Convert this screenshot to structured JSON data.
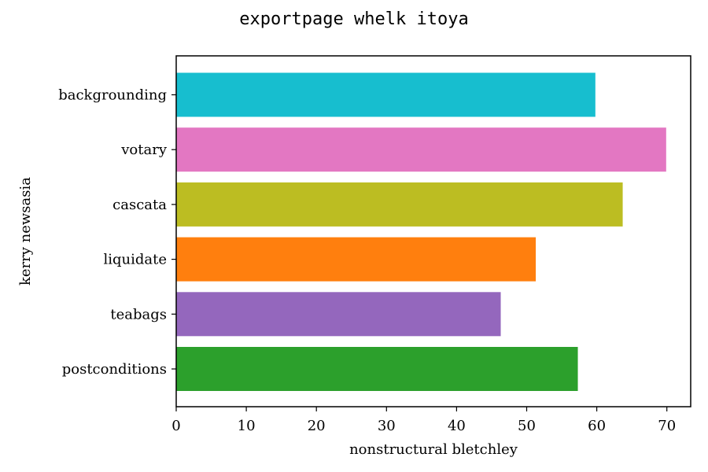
{
  "chart_data": {
    "type": "bar",
    "orientation": "horizontal",
    "title": "exportpage whelk itoya",
    "xlabel": "nonstructural bletchley",
    "ylabel": "kerry newsasia",
    "categories": [
      "backgrounding",
      "votary",
      "cascata",
      "liquidate",
      "teabags",
      "postconditions"
    ],
    "values": [
      59.8,
      69.9,
      63.7,
      51.3,
      46.3,
      57.3
    ],
    "colors": [
      "#17becf",
      "#e377c2",
      "#bcbd22",
      "#ff7f0e",
      "#9467bd",
      "#2ca02c"
    ],
    "xlim": [
      0,
      73.4
    ],
    "xticks": [
      0,
      10,
      20,
      30,
      40,
      50,
      60,
      70
    ],
    "grid": false,
    "legend": "none"
  }
}
